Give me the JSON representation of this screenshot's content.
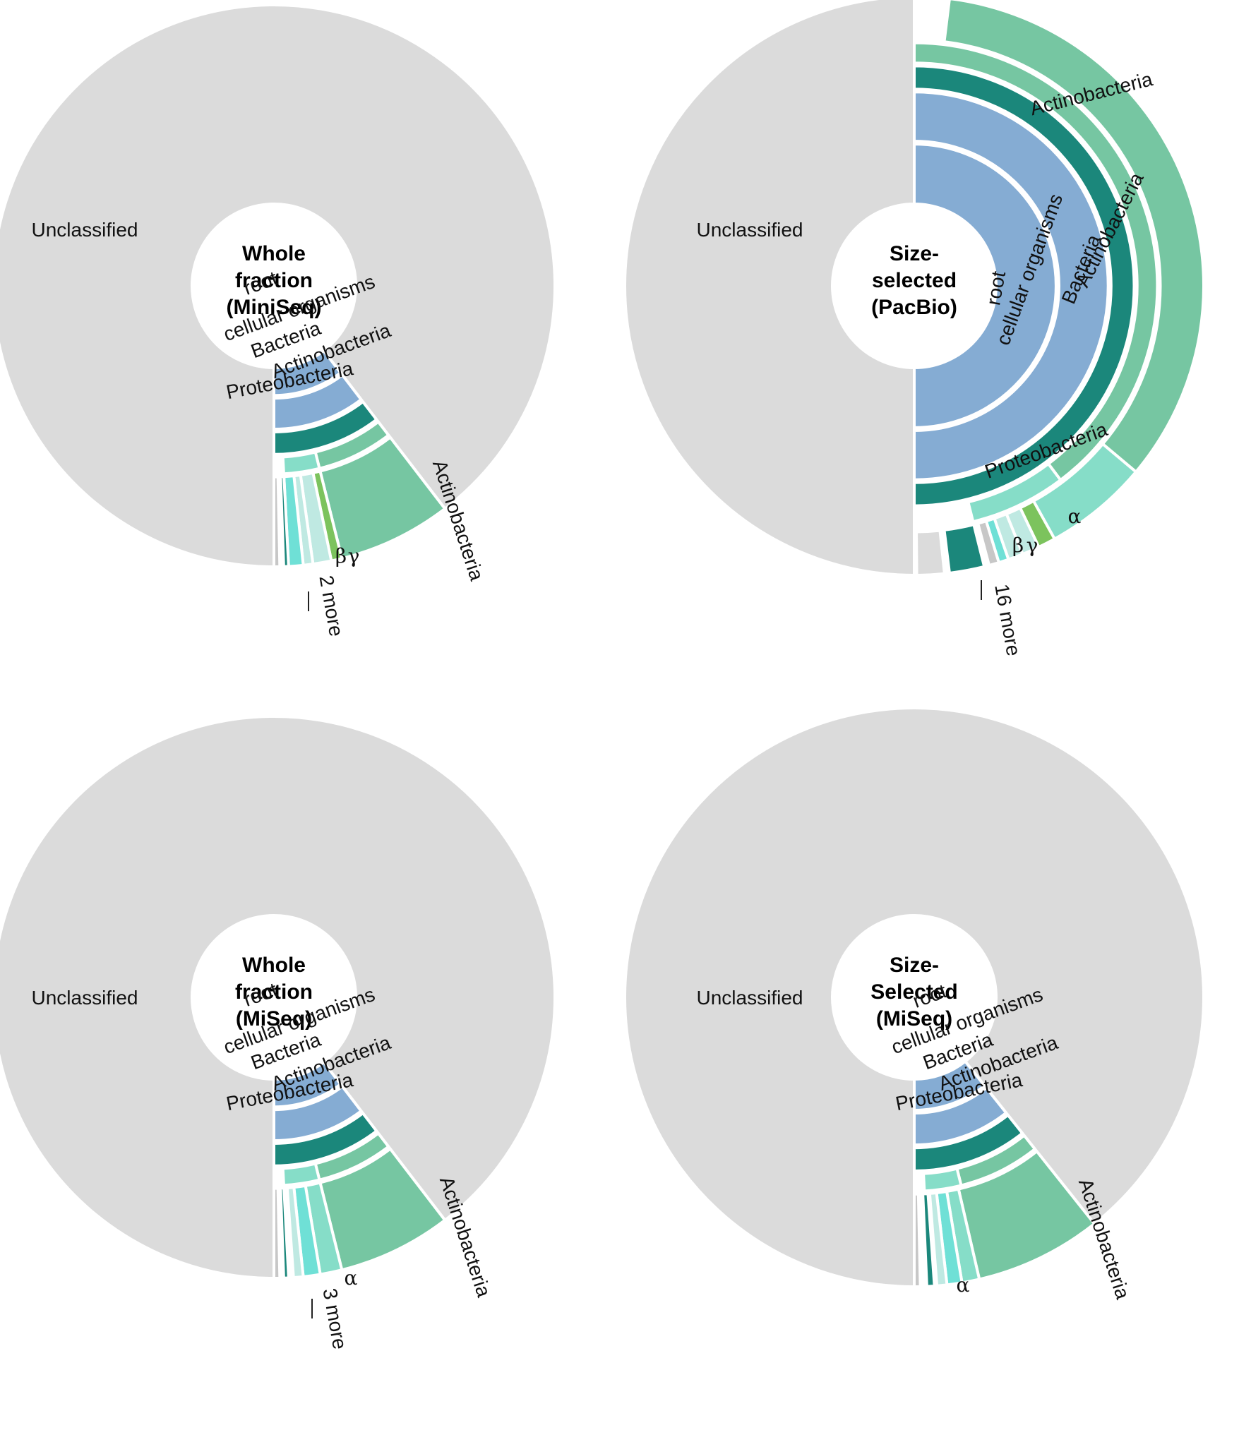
{
  "palette": {
    "unclassified": "#dbdbdb",
    "root": "#85acd3",
    "cellular": "#85acd3",
    "bacteria": "#1b877b",
    "actino": "#76c6a2",
    "proteo": "#86ddc8",
    "proteo_light": "#bfe9e2",
    "cyan": "#6fe0d6",
    "gamma": "#7cc35d",
    "gray_thin": "#c7c7c7"
  },
  "chart_data": [
    {
      "type": "sunburst",
      "title": "Whole fraction (MiniSeq)",
      "title_lines": [
        "Whole",
        "fraction",
        "(MiniSeq)"
      ],
      "center_label": "Unclassified",
      "more_label": "2 more",
      "greek": [
        "β",
        "γ"
      ],
      "arcs": [
        {
          "name": "Unclassified",
          "level": 1,
          "start": 37.5,
          "end": 360,
          "color": "unclassified"
        },
        {
          "name": "root",
          "level": 1,
          "start": 0,
          "end": 37.5,
          "color": "root"
        },
        {
          "name": "cellular organisms",
          "level": 2,
          "start": 0,
          "end": 37.5,
          "color": "cellular"
        },
        {
          "name": "Bacteria",
          "level": 3,
          "start": 0,
          "end": 37.5,
          "color": "bacteria"
        },
        {
          "name": "Actinobacteria",
          "level": 4,
          "start": 14,
          "end": 37.5,
          "color": "actino"
        },
        {
          "name": "Proteobacteria",
          "level": 4,
          "start": 3,
          "end": 14,
          "color": "proteo"
        },
        {
          "name": "Actinobacteria",
          "level": 5,
          "start": 14,
          "end": 37.5,
          "color": "actino"
        },
        {
          "name": "",
          "level": 5,
          "start": 11.8,
          "end": 14,
          "color": "gamma"
        },
        {
          "name": "",
          "level": 5,
          "start": 8,
          "end": 11.8,
          "color": "proteo_light"
        },
        {
          "name": "",
          "level": 5,
          "start": 6,
          "end": 8,
          "color": "proteo_light"
        },
        {
          "name": "",
          "level": 5,
          "start": 3,
          "end": 6,
          "color": "cyan"
        },
        {
          "name": "",
          "level": 5,
          "start": 2,
          "end": 3,
          "color": "bacteria"
        },
        {
          "name": "",
          "level": 5,
          "start": 0,
          "end": 1.2,
          "color": "gray_thin"
        }
      ]
    },
    {
      "type": "sunburst",
      "title": "Size-selected (PacBio)",
      "title_lines": [
        "Size-",
        "selected",
        "(PacBio)"
      ],
      "center_label": "Unclassified",
      "more_label": "16 more",
      "greek": [
        "α",
        "β",
        "γ"
      ],
      "arcs": [
        {
          "name": "Unclassified",
          "level": 1,
          "start": 180,
          "end": 360,
          "color": "unclassified"
        },
        {
          "name": "root",
          "level": 1,
          "start": 0,
          "end": 180,
          "color": "root"
        },
        {
          "name": "cellular organisms",
          "level": 2,
          "start": 0,
          "end": 180,
          "color": "cellular"
        },
        {
          "name": "Bacteria",
          "level": 3,
          "start": 0,
          "end": 180,
          "color": "bacteria"
        },
        {
          "name": "Actinobacteria",
          "level": 4,
          "start": 37,
          "end": 180,
          "color": "actino"
        },
        {
          "name": "Proteobacteria",
          "level": 4,
          "start": 14,
          "end": 37,
          "color": "proteo"
        },
        {
          "name": "Actinobacteria",
          "level": 5,
          "start": 50,
          "end": 173,
          "color": "actino"
        },
        {
          "name": "",
          "level": 5,
          "start": 29,
          "end": 50,
          "color": "proteo"
        },
        {
          "name": "",
          "level": 5,
          "start": 25.5,
          "end": 29,
          "color": "gamma"
        },
        {
          "name": "",
          "level": 5,
          "start": 22,
          "end": 25.5,
          "color": "proteo_light"
        },
        {
          "name": "",
          "level": 5,
          "start": 19,
          "end": 22,
          "color": "proteo_light"
        },
        {
          "name": "",
          "level": 5,
          "start": 17,
          "end": 19,
          "color": "cyan"
        },
        {
          "name": "",
          "level": 5,
          "start": 15,
          "end": 17,
          "color": "gray_thin"
        },
        {
          "name": "",
          "level": 5,
          "start": 7,
          "end": 14,
          "color": "bacteria"
        },
        {
          "name": "",
          "level": 5,
          "start": 0.5,
          "end": 6,
          "color": "unclassified"
        }
      ]
    },
    {
      "type": "sunburst",
      "title": "Whole fraction (MiSeq)",
      "title_lines": [
        "Whole",
        "fraction",
        "(MiSeq)"
      ],
      "center_label": "Unclassified",
      "more_label": "3 more",
      "greek": [
        "α"
      ],
      "arcs": [
        {
          "name": "Unclassified",
          "level": 1,
          "start": 37.5,
          "end": 360,
          "color": "unclassified"
        },
        {
          "name": "root",
          "level": 1,
          "start": 0,
          "end": 37.5,
          "color": "root"
        },
        {
          "name": "cellular organisms",
          "level": 2,
          "start": 0,
          "end": 37.5,
          "color": "cellular"
        },
        {
          "name": "Bacteria",
          "level": 3,
          "start": 0,
          "end": 37.5,
          "color": "bacteria"
        },
        {
          "name": "Actinobacteria",
          "level": 4,
          "start": 14,
          "end": 37.5,
          "color": "actino"
        },
        {
          "name": "Proteobacteria",
          "level": 4,
          "start": 3,
          "end": 14,
          "color": "proteo"
        },
        {
          "name": "Actinobacteria",
          "level": 5,
          "start": 14,
          "end": 37.5,
          "color": "actino"
        },
        {
          "name": "",
          "level": 5,
          "start": 9.5,
          "end": 14,
          "color": "proteo"
        },
        {
          "name": "",
          "level": 5,
          "start": 6,
          "end": 9.5,
          "color": "cyan"
        },
        {
          "name": "",
          "level": 5,
          "start": 4,
          "end": 6,
          "color": "proteo_light"
        },
        {
          "name": "",
          "level": 5,
          "start": 2,
          "end": 3,
          "color": "bacteria"
        },
        {
          "name": "",
          "level": 5,
          "start": 0,
          "end": 1.2,
          "color": "gray_thin"
        }
      ]
    },
    {
      "type": "sunburst",
      "title": "Size-Selected (MiSeq)",
      "title_lines": [
        "Size-",
        "Selected",
        "(MiSeq)"
      ],
      "center_label": "Unclassified",
      "more_label": "",
      "greek": [
        "α"
      ],
      "arcs": [
        {
          "name": "Unclassified",
          "level": 1,
          "start": 38.5,
          "end": 360,
          "color": "unclassified"
        },
        {
          "name": "root",
          "level": 1,
          "start": 0,
          "end": 38.5,
          "color": "root"
        },
        {
          "name": "cellular organisms",
          "level": 2,
          "start": 0,
          "end": 38.5,
          "color": "cellular"
        },
        {
          "name": "Bacteria",
          "level": 3,
          "start": 0,
          "end": 38.5,
          "color": "bacteria"
        },
        {
          "name": "Actinobacteria",
          "level": 4,
          "start": 14,
          "end": 38.5,
          "color": "actino"
        },
        {
          "name": "Proteobacteria",
          "level": 4,
          "start": 3,
          "end": 14,
          "color": "proteo"
        },
        {
          "name": "Actinobacteria",
          "level": 5,
          "start": 13,
          "end": 38.5,
          "color": "actino"
        },
        {
          "name": "",
          "level": 5,
          "start": 9.5,
          "end": 13,
          "color": "proteo"
        },
        {
          "name": "",
          "level": 5,
          "start": 6.5,
          "end": 9.5,
          "color": "cyan"
        },
        {
          "name": "",
          "level": 5,
          "start": 4.5,
          "end": 6.5,
          "color": "proteo_light"
        },
        {
          "name": "",
          "level": 5,
          "start": 2.5,
          "end": 4,
          "color": "bacteria"
        },
        {
          "name": "",
          "level": 5,
          "start": 0,
          "end": 1.2,
          "color": "gray_thin"
        }
      ]
    }
  ]
}
